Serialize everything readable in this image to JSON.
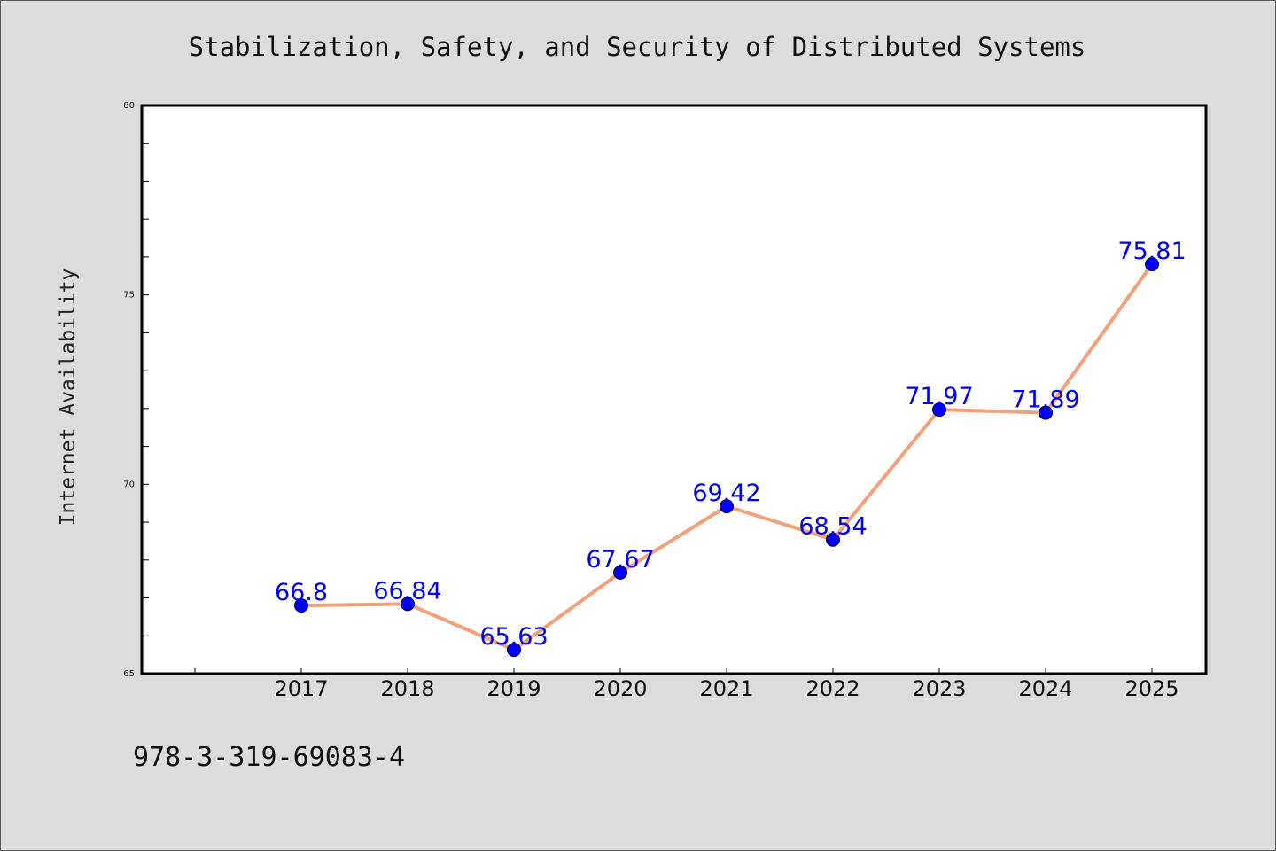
{
  "chart_data": {
    "type": "line",
    "title": "Stabilization, Safety, and Security of Distributed Systems",
    "ylabel": "Internet Availability",
    "xlabel": "",
    "categories": [
      "2017",
      "2018",
      "2019",
      "2020",
      "2021",
      "2022",
      "2023",
      "2024",
      "2025"
    ],
    "series": [
      {
        "values": [
          66.8,
          66.84,
          65.63,
          67.67,
          69.42,
          68.54,
          71.97,
          71.89,
          75.81
        ],
        "data_labels": [
          "66.8",
          "66.84",
          "65.63",
          "67.67",
          "69.42",
          "68.54",
          "71.97",
          "71.89",
          "75.81"
        ]
      }
    ],
    "ylim": [
      65,
      80
    ],
    "yticks": [
      65,
      70,
      75,
      80
    ],
    "grid": false,
    "legend": "none",
    "line_color": "#f4a07a",
    "marker_color": "#0000ff",
    "label_color": "#0000ee"
  },
  "footer": {
    "isbn": "978-3-319-69083-4"
  }
}
